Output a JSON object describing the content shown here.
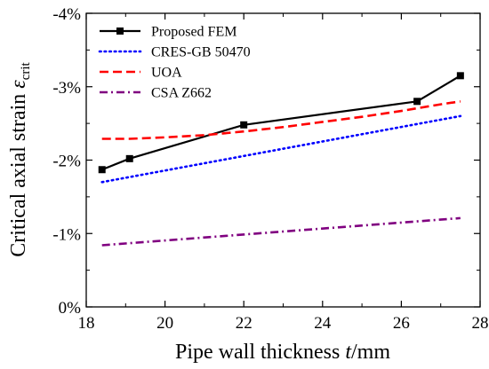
{
  "chart_data": {
    "type": "line",
    "x_axis": {
      "label_prefix": "Pipe wall thickness ",
      "label_var": "t",
      "label_suffix": "/mm",
      "range": [
        18,
        28
      ],
      "ticks": [
        18,
        20,
        22,
        24,
        26,
        28
      ],
      "tick_labels": [
        "18",
        "20",
        "22",
        "24",
        "26",
        "28"
      ]
    },
    "y_axis": {
      "label_prefix": "Critical axial strain ",
      "label_var": "ε",
      "label_sub": "crit",
      "range": [
        0,
        -4
      ],
      "unit": "%",
      "ticks": [
        0,
        -1,
        -2,
        -3,
        -4
      ],
      "tick_labels": [
        "0%",
        "-1%",
        "-2%",
        "-3%",
        "-4%"
      ]
    },
    "legend_position": "top-left",
    "series": [
      {
        "name": "Proposed FEM",
        "color": "#000000",
        "dash": "solid",
        "marker": "square",
        "x": [
          18.4,
          19.1,
          22.0,
          26.4,
          27.5
        ],
        "y": [
          -1.87,
          -2.02,
          -2.48,
          -2.8,
          -3.15
        ]
      },
      {
        "name": "CRES-GB 50470",
        "color": "#0000ff",
        "dash": "dot",
        "marker": "none",
        "x": [
          18.4,
          27.5
        ],
        "y": [
          -1.7,
          -2.6
        ]
      },
      {
        "name": "UOA",
        "color": "#ff0000",
        "dash": "dash",
        "marker": "none",
        "x": [
          18.4,
          19.1,
          20.0,
          21.0,
          22.0,
          23.0,
          24.0,
          25.0,
          26.0,
          27.0,
          27.5
        ],
        "y": [
          -2.29,
          -2.29,
          -2.31,
          -2.34,
          -2.39,
          -2.45,
          -2.52,
          -2.59,
          -2.67,
          -2.76,
          -2.8
        ]
      },
      {
        "name": "CSA Z662",
        "color": "#800080",
        "dash": "dashdot",
        "marker": "none",
        "x": [
          18.4,
          27.5
        ],
        "y": [
          -0.84,
          -1.21
        ]
      }
    ]
  }
}
